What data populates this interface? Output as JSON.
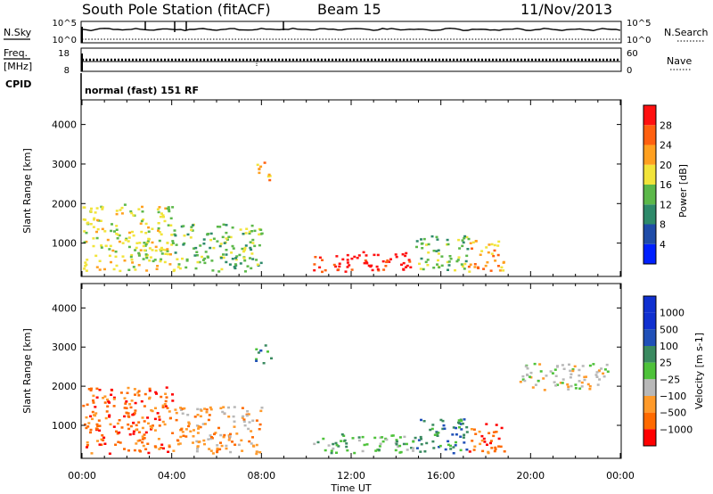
{
  "header": {
    "station": "South Pole Station (fitACF)",
    "beam": "Beam 15",
    "date": "11/Nov/2013"
  },
  "strip_nsky": {
    "left_label": "N.Sky",
    "right_label": "N.Search",
    "left_ticks": [
      "10^5",
      "10^0"
    ],
    "right_ticks": [
      "10^5",
      "10^0"
    ]
  },
  "strip_freq": {
    "left_label_1": "Freq.",
    "left_label_2": "[MHz]",
    "right_label": "Nave",
    "left_ticks": [
      "18",
      "8"
    ],
    "right_ticks": [
      "60",
      "0"
    ]
  },
  "cpid": {
    "label": "CPID",
    "text": "normal (fast) 151 RF"
  },
  "colors": {
    "power": [
      "#0020ff",
      "#1f4ca8",
      "#2e8a6a",
      "#5cb84a",
      "#f2e43a",
      "#ffa020",
      "#ff6010",
      "#ff1010"
    ],
    "velocity": [
      "#ff0000",
      "#ff6a00",
      "#ff9a2a",
      "#b8b8b8",
      "#4ec23a",
      "#3a8a60",
      "#2050b8",
      "#1030d0"
    ]
  },
  "chart_data": [
    {
      "type": "heatmap",
      "panel": "power",
      "ylabel": "Slant Range [km]",
      "ylim": [
        180,
        4600
      ],
      "yticks": [
        1000,
        2000,
        3000,
        4000
      ],
      "xticks": [
        "00:00",
        "04:00",
        "08:00",
        "12:00",
        "16:00",
        "20:00",
        "00:00"
      ],
      "colorbar_label": "Power [dB]",
      "colorbar_ticks": [
        "4",
        "8",
        "12",
        "16",
        "20",
        "24",
        "28"
      ],
      "echo_regions": [
        {
          "t0": 10.3,
          "t1": 14.8,
          "r0": 300,
          "r1": 800,
          "level": 7
        },
        {
          "t0": 14.8,
          "t1": 17.2,
          "r0": 300,
          "r1": 1200,
          "level": 3
        },
        {
          "t0": 17.2,
          "t1": 18.8,
          "r0": 300,
          "r1": 1100,
          "level": 5
        },
        {
          "t0": 0.0,
          "t1": 4.0,
          "r0": 300,
          "r1": 2000,
          "level": 4
        },
        {
          "t0": 4.0,
          "t1": 8.0,
          "r0": 300,
          "r1": 1500,
          "level": 3
        },
        {
          "t0": 7.7,
          "t1": 8.4,
          "r0": 2600,
          "r1": 3100,
          "level": 5
        }
      ]
    },
    {
      "type": "heatmap",
      "panel": "velocity",
      "xlabel": "Time UT",
      "ylabel": "Slant Range [km]",
      "ylim": [
        180,
        4600
      ],
      "yticks": [
        1000,
        2000,
        3000,
        4000
      ],
      "xticks": [
        "00:00",
        "04:00",
        "08:00",
        "12:00",
        "16:00",
        "20:00",
        "00:00"
      ],
      "colorbar_label": "Velocity [m s-1]",
      "colorbar_ticks": [
        "1000",
        "500",
        "100",
        "25",
        "−25",
        "−100",
        "−500",
        "−1000"
      ],
      "echo_regions": [
        {
          "t0": 10.3,
          "t1": 14.8,
          "r0": 300,
          "r1": 800,
          "level": 4
        },
        {
          "t0": 14.8,
          "t1": 17.2,
          "r0": 300,
          "r1": 1200,
          "level": 5
        },
        {
          "t0": 17.2,
          "t1": 18.8,
          "r0": 300,
          "r1": 1100,
          "level": 1
        },
        {
          "t0": 0.0,
          "t1": 4.0,
          "r0": 300,
          "r1": 2000,
          "level": 1
        },
        {
          "t0": 4.0,
          "t1": 8.0,
          "r0": 300,
          "r1": 1500,
          "level": 2
        },
        {
          "t0": 7.7,
          "t1": 8.4,
          "r0": 2600,
          "r1": 3100,
          "level": 5
        },
        {
          "t0": 19.5,
          "t1": 23.5,
          "r0": 1900,
          "r1": 2600,
          "level": 3
        }
      ]
    }
  ]
}
